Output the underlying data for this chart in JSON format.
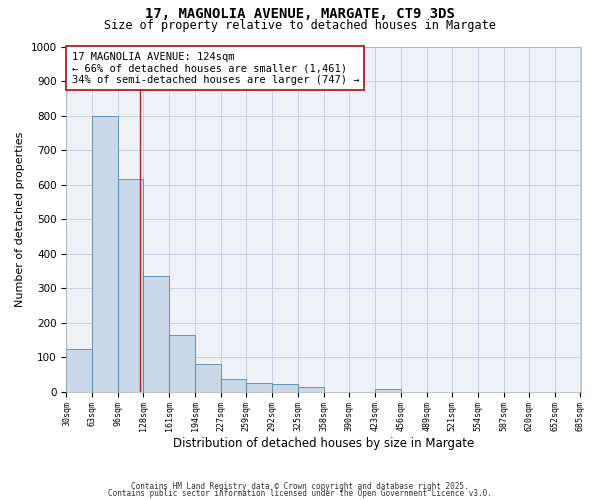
{
  "title": "17, MAGNOLIA AVENUE, MARGATE, CT9 3DS",
  "subtitle": "Size of property relative to detached houses in Margate",
  "xlabel": "Distribution of detached houses by size in Margate",
  "ylabel": "Number of detached properties",
  "bar_values": [
    124,
    800,
    617,
    335,
    163,
    80,
    37,
    25,
    22,
    15,
    0,
    0,
    7,
    0,
    0,
    0,
    0,
    0,
    0,
    0
  ],
  "bin_labels": [
    "30sqm",
    "63sqm",
    "96sqm",
    "128sqm",
    "161sqm",
    "194sqm",
    "227sqm",
    "259sqm",
    "292sqm",
    "325sqm",
    "358sqm",
    "390sqm",
    "423sqm",
    "456sqm",
    "489sqm",
    "521sqm",
    "554sqm",
    "587sqm",
    "620sqm",
    "652sqm",
    "685sqm"
  ],
  "bin_edges": [
    30,
    63,
    96,
    128,
    161,
    194,
    227,
    259,
    292,
    325,
    358,
    390,
    423,
    456,
    489,
    521,
    554,
    587,
    620,
    652,
    685
  ],
  "bar_color": "#c8d8e8",
  "bar_edge_color": "#5588aa",
  "vline_x": 124,
  "vline_color": "#aa2222",
  "ylim": [
    0,
    1000
  ],
  "yticks": [
    0,
    100,
    200,
    300,
    400,
    500,
    600,
    700,
    800,
    900,
    1000
  ],
  "annotation_text": "17 MAGNOLIA AVENUE: 124sqm\n← 66% of detached houses are smaller (1,461)\n34% of semi-detached houses are larger (747) →",
  "footer1": "Contains HM Land Registry data © Crown copyright and database right 2025.",
  "footer2": "Contains public sector information licensed under the Open Government Licence v3.0.",
  "bg_color": "#eef2f7",
  "grid_color": "#c0ccdd"
}
